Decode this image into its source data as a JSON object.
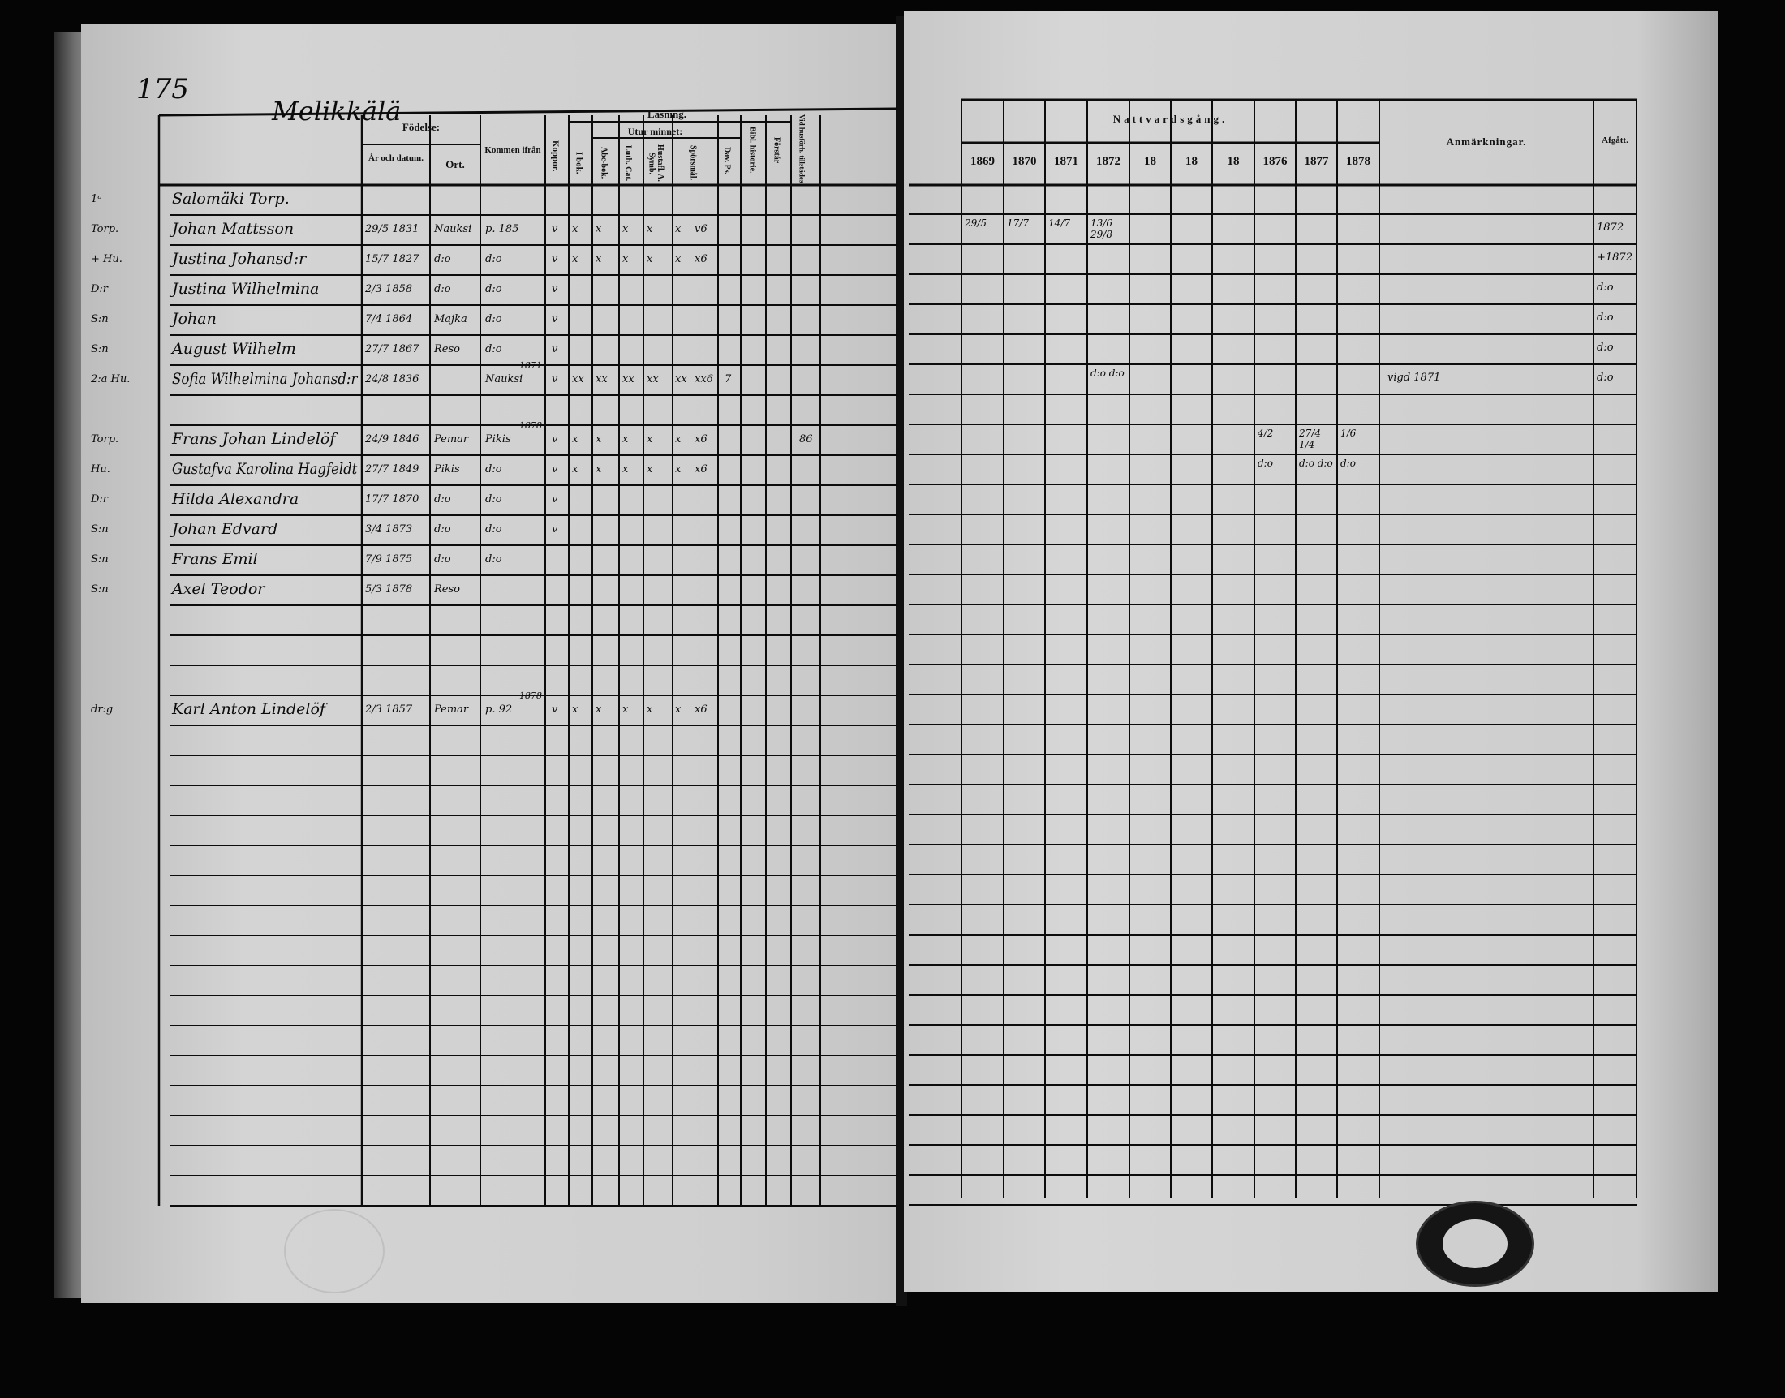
{
  "page_number": "175",
  "village": "Melikkälä",
  "left_header": {
    "fodelse": "Födelse:",
    "ar_datum": "År och datum.",
    "ort": "Ort.",
    "kommen": "Kommen ifrån",
    "koppor": "Koppor.",
    "lasning": "Läsning.",
    "i_bok": "I bok.",
    "utur_minnet": "Utur minnet:",
    "abc": "Abc-bok.",
    "luth": "Luth. Cat.",
    "hustafl": "Hustafl. A. Symb.",
    "sporsmal": "Spörsmål.",
    "dav": "Dav. Ps.",
    "bibl": "Bibl. historie.",
    "forstar": "Förstår",
    "vid": "Vid husförh. tillstädes"
  },
  "right_header": {
    "nattvard": "Nattvardsgång.",
    "years": [
      "1869",
      "1870",
      "1871",
      "1872",
      "18",
      "18",
      "18",
      "1876",
      "1877",
      "1878"
    ],
    "anmarkningar": "Anmärkningar.",
    "afgatt": "Afgått."
  },
  "left_rows": [
    {
      "row": 0,
      "prefix": "1ᵒ",
      "name": "Salomäki Torp.",
      "birth": "",
      "place": "",
      "from": "",
      "from_note": "",
      "koppor": "",
      "reading": [
        "",
        "",
        "",
        "",
        "",
        ""
      ],
      "dav": "",
      "vid": ""
    },
    {
      "row": 1,
      "prefix": "Torp.",
      "name": "Johan Mattsson",
      "birth": "29/5 1831",
      "place": "Nauksi",
      "from": "p. 185",
      "from_note": "",
      "koppor": "v",
      "reading": [
        "x",
        "x",
        "x",
        "x",
        "x",
        "v6"
      ],
      "dav": "",
      "vid": ""
    },
    {
      "row": 2,
      "prefix": "+ Hu.",
      "name": "Justina Johansd:r",
      "birth": "15/7 1827",
      "place": "d:o",
      "from": "d:o",
      "from_note": "",
      "koppor": "v",
      "reading": [
        "x",
        "x",
        "x",
        "x",
        "x",
        "x6"
      ],
      "dav": "",
      "vid": ""
    },
    {
      "row": 3,
      "prefix": "D:r",
      "name": "Justina Wilhelmina",
      "birth": "2/3 1858",
      "place": "d:o",
      "from": "d:o",
      "from_note": "",
      "koppor": "v",
      "reading": [
        "",
        "",
        "",
        "",
        "",
        ""
      ],
      "dav": "",
      "vid": ""
    },
    {
      "row": 4,
      "prefix": "S:n",
      "name": "Johan",
      "birth": "7/4 1864",
      "place": "Majka",
      "from": "d:o",
      "from_note": "",
      "koppor": "v",
      "reading": [
        "",
        "",
        "",
        "",
        "",
        ""
      ],
      "dav": "",
      "vid": ""
    },
    {
      "row": 5,
      "prefix": "S:n",
      "name": "August Wilhelm",
      "birth": "27/7 1867",
      "place": "Reso",
      "from": "d:o",
      "from_note": "",
      "koppor": "v",
      "reading": [
        "",
        "",
        "",
        "",
        "",
        ""
      ],
      "dav": "",
      "vid": ""
    },
    {
      "row": 6,
      "prefix": "2:a Hu.",
      "name": "Sofia Wilhelmina Johansd:r",
      "birth": "24/8 1836",
      "place": "",
      "from": "Nauksi",
      "from_note": "1871",
      "koppor": "v",
      "reading": [
        "xx",
        "xx",
        "xx",
        "xx",
        "xx",
        "xx6"
      ],
      "dav": "7",
      "vid": ""
    },
    {
      "row": 8,
      "prefix": "Torp.",
      "name": "Frans Johan Lindelöf",
      "birth": "24/9 1846",
      "place": "Pemar",
      "from": "Pikis",
      "from_note": "1878",
      "koppor": "v",
      "reading": [
        "x",
        "x",
        "x",
        "x",
        "x",
        "x6"
      ],
      "dav": "",
      "vid": "86"
    },
    {
      "row": 9,
      "prefix": "Hu.",
      "name": "Gustafva Karolina Hagfeldt",
      "birth": "27/7 1849",
      "place": "Pikis",
      "from": "d:o",
      "from_note": "",
      "koppor": "v",
      "reading": [
        "x",
        "x",
        "x",
        "x",
        "x",
        "x6"
      ],
      "dav": "",
      "vid": ""
    },
    {
      "row": 10,
      "prefix": "D:r",
      "name": "Hilda Alexandra",
      "birth": "17/7 1870",
      "place": "d:o",
      "from": "d:o",
      "from_note": "",
      "koppor": "v",
      "reading": [
        "",
        "",
        "",
        "",
        "",
        ""
      ],
      "dav": "",
      "vid": ""
    },
    {
      "row": 11,
      "prefix": "S:n",
      "name": "Johan Edvard",
      "birth": "3/4 1873",
      "place": "d:o",
      "from": "d:o",
      "from_note": "",
      "koppor": "v",
      "reading": [
        "",
        "",
        "",
        "",
        "",
        ""
      ],
      "dav": "",
      "vid": ""
    },
    {
      "row": 12,
      "prefix": "S:n",
      "name": "Frans Emil",
      "birth": "7/9 1875",
      "place": "d:o",
      "from": "d:o",
      "from_note": "",
      "koppor": "",
      "reading": [
        "",
        "",
        "",
        "",
        "",
        ""
      ],
      "dav": "",
      "vid": ""
    },
    {
      "row": 13,
      "prefix": "S:n",
      "name": "Axel Teodor",
      "birth": "5/3 1878",
      "place": "Reso",
      "from": "",
      "from_note": "",
      "koppor": "",
      "reading": [
        "",
        "",
        "",
        "",
        "",
        ""
      ],
      "dav": "",
      "vid": ""
    },
    {
      "row": 17,
      "prefix": "dr:g",
      "name": "Karl Anton Lindelöf",
      "birth": "2/3 1857",
      "place": "Pemar",
      "from": "p. 92",
      "from_note": "1878",
      "koppor": "v",
      "reading": [
        "x",
        "x",
        "x",
        "x",
        "x",
        "x6"
      ],
      "dav": "",
      "vid": ""
    }
  ],
  "right_rows": [
    {
      "row": 1,
      "years": [
        "29/5",
        "17/7",
        "14/7",
        "13/6 29/8",
        "",
        "",
        "",
        "",
        "",
        ""
      ],
      "remark": "",
      "afgatt": "1872"
    },
    {
      "row": 2,
      "years": [
        "",
        "",
        "",
        "",
        "",
        "",
        "",
        "",
        "",
        ""
      ],
      "remark": "",
      "afgatt": "+1872"
    },
    {
      "row": 3,
      "years": [
        "",
        "",
        "",
        "",
        "",
        "",
        "",
        "",
        "",
        ""
      ],
      "remark": "",
      "afgatt": "d:o"
    },
    {
      "row": 4,
      "years": [
        "",
        "",
        "",
        "",
        "",
        "",
        "",
        "",
        "",
        ""
      ],
      "remark": "",
      "afgatt": "d:o"
    },
    {
      "row": 5,
      "years": [
        "",
        "",
        "",
        "",
        "",
        "",
        "",
        "",
        "",
        ""
      ],
      "remark": "",
      "afgatt": "d:o"
    },
    {
      "row": 6,
      "years": [
        "",
        "",
        "",
        "d:o d:o",
        "",
        "",
        "",
        "",
        "",
        ""
      ],
      "remark": "vigd 1871",
      "afgatt": "d:o"
    },
    {
      "row": 8,
      "years": [
        "",
        "",
        "",
        "",
        "",
        "",
        "",
        "4/2",
        "27/4 1/4",
        "1/6"
      ],
      "remark": "",
      "afgatt": ""
    },
    {
      "row": 9,
      "years": [
        "",
        "",
        "",
        "",
        "",
        "",
        "",
        "d:o",
        "d:o d:o",
        "d:o"
      ],
      "remark": "",
      "afgatt": ""
    }
  ]
}
